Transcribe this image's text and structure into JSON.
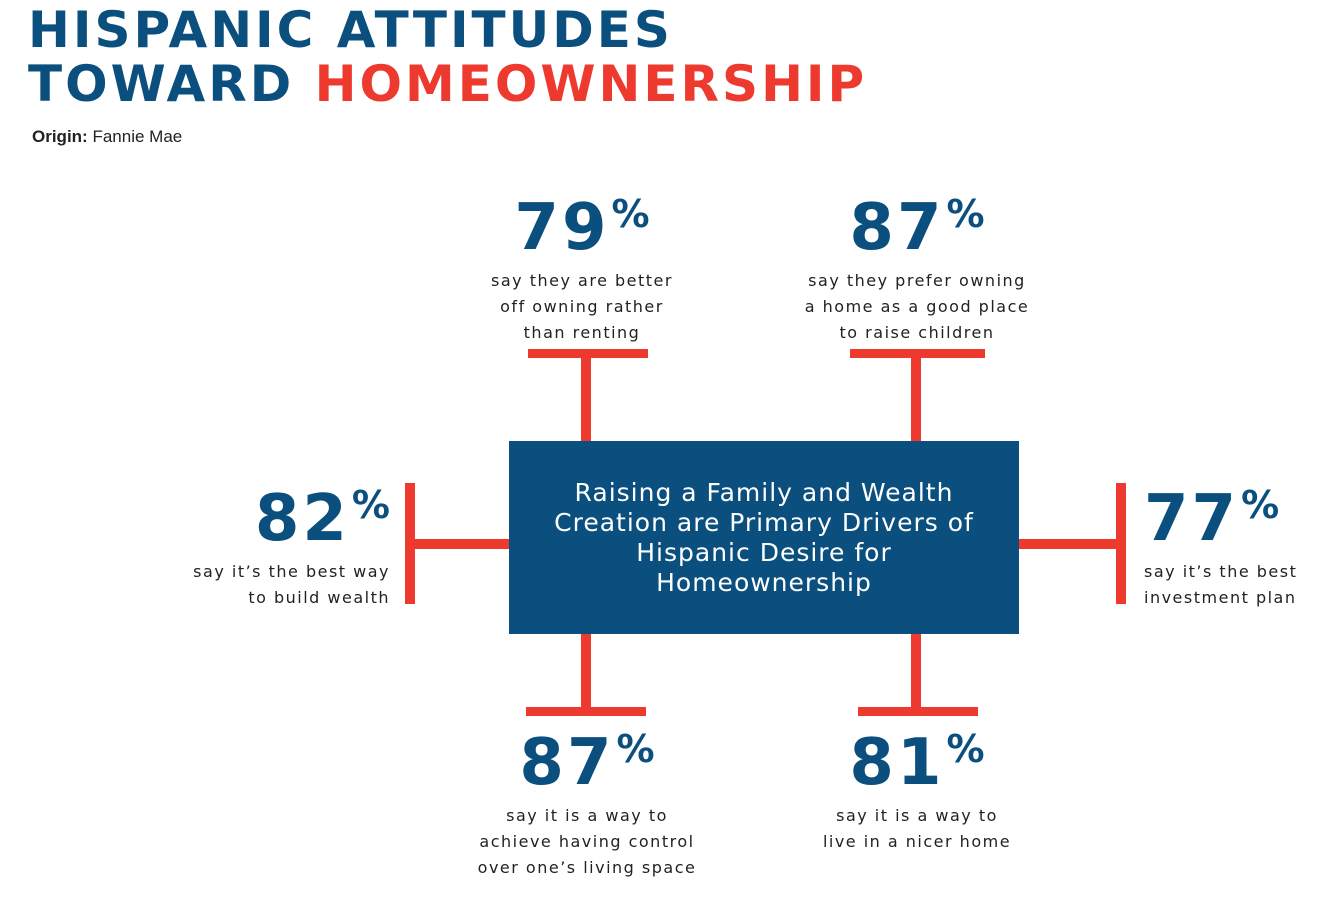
{
  "header": {
    "title_line1": "HISPANIC ATTITUDES",
    "title_line2_prefix": "TOWARD",
    "title_line2_accent": "HOMEOWNERSHIP",
    "origin_label": "Origin:",
    "origin_value": "Fannie Mae"
  },
  "center": {
    "text": "Raising a Family and Wealth Creation are Primary Drivers of Hispanic Desire for Homeownership"
  },
  "stats": {
    "top_left": {
      "number": "79",
      "sign": "%",
      "lines": [
        "say they are better",
        "off owning rather",
        "than renting"
      ]
    },
    "top_right": {
      "number": "87",
      "sign": "%",
      "lines": [
        "say they prefer owning",
        "a home as a good place",
        "to raise children"
      ]
    },
    "left": {
      "number": "82",
      "sign": "%",
      "lines": [
        "say it’s the best way",
        "to build wealth"
      ]
    },
    "right": {
      "number": "77",
      "sign": "%",
      "lines": [
        "say it’s the best",
        "investment plan"
      ]
    },
    "bottom_left": {
      "number": "87",
      "sign": "%",
      "lines": [
        "say it is a way to",
        "achieve having control",
        "over one’s living space"
      ]
    },
    "bottom_right": {
      "number": "81",
      "sign": "%",
      "lines": [
        "say it is a way to",
        "live in a nicer home"
      ]
    }
  },
  "colors": {
    "primary_blue": "#0b4f7e",
    "accent_red": "#ee3a2e",
    "text_dark": "#222222",
    "background": "#ffffff"
  }
}
